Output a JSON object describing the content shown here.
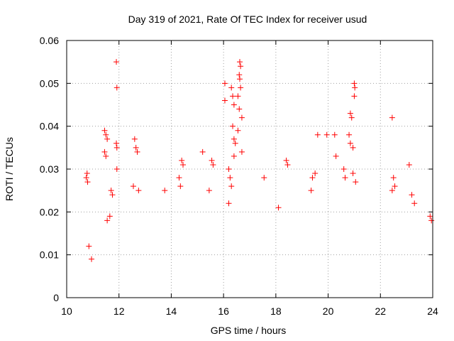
{
  "chart_data": {
    "type": "scatter",
    "title": "Day 319 of 2021, Rate Of TEC Index for receiver usud",
    "xlabel": "GPS time / hours",
    "ylabel": "ROTI / TECUs",
    "xlim": [
      10,
      24
    ],
    "ylim": [
      0,
      0.06
    ],
    "x_ticks": [
      "10",
      "12",
      "14",
      "16",
      "18",
      "20",
      "22",
      "24"
    ],
    "y_ticks": [
      "0",
      "0.01",
      "0.02",
      "0.03",
      "0.04",
      "0.05",
      "0.06"
    ],
    "grid": true,
    "marker": "plus",
    "color": "#ff0000",
    "series": [
      {
        "points": [
          [
            10.75,
            0.028
          ],
          [
            10.78,
            0.029
          ],
          [
            10.8,
            0.027
          ],
          [
            10.85,
            0.012
          ],
          [
            10.95,
            0.009
          ],
          [
            11.45,
            0.039
          ],
          [
            11.5,
            0.038
          ],
          [
            11.55,
            0.037
          ],
          [
            11.45,
            0.034
          ],
          [
            11.5,
            0.033
          ],
          [
            11.7,
            0.025
          ],
          [
            11.75,
            0.024
          ],
          [
            11.65,
            0.019
          ],
          [
            11.55,
            0.018
          ],
          [
            11.9,
            0.055
          ],
          [
            11.92,
            0.049
          ],
          [
            11.9,
            0.036
          ],
          [
            11.92,
            0.035
          ],
          [
            11.92,
            0.03
          ],
          [
            12.6,
            0.037
          ],
          [
            12.65,
            0.035
          ],
          [
            12.7,
            0.034
          ],
          [
            12.55,
            0.026
          ],
          [
            12.75,
            0.025
          ],
          [
            13.75,
            0.025
          ],
          [
            14.4,
            0.032
          ],
          [
            14.45,
            0.031
          ],
          [
            14.3,
            0.028
          ],
          [
            14.35,
            0.026
          ],
          [
            15.2,
            0.034
          ],
          [
            15.55,
            0.032
          ],
          [
            15.6,
            0.031
          ],
          [
            15.45,
            0.025
          ],
          [
            16.05,
            0.05
          ],
          [
            16.05,
            0.046
          ],
          [
            16.3,
            0.049
          ],
          [
            16.35,
            0.047
          ],
          [
            16.4,
            0.045
          ],
          [
            16.35,
            0.04
          ],
          [
            16.4,
            0.037
          ],
          [
            16.45,
            0.036
          ],
          [
            16.4,
            0.033
          ],
          [
            16.2,
            0.03
          ],
          [
            16.25,
            0.028
          ],
          [
            16.3,
            0.026
          ],
          [
            16.2,
            0.022
          ],
          [
            16.62,
            0.055
          ],
          [
            16.65,
            0.054
          ],
          [
            16.6,
            0.052
          ],
          [
            16.62,
            0.051
          ],
          [
            16.65,
            0.049
          ],
          [
            16.55,
            0.047
          ],
          [
            16.6,
            0.044
          ],
          [
            16.7,
            0.042
          ],
          [
            16.55,
            0.039
          ],
          [
            16.7,
            0.034
          ],
          [
            17.55,
            0.028
          ],
          [
            18.4,
            0.032
          ],
          [
            18.45,
            0.031
          ],
          [
            18.1,
            0.021
          ],
          [
            19.5,
            0.029
          ],
          [
            19.6,
            0.038
          ],
          [
            19.4,
            0.028
          ],
          [
            19.35,
            0.025
          ],
          [
            19.95,
            0.038
          ],
          [
            20.25,
            0.038
          ],
          [
            20.3,
            0.033
          ],
          [
            20.6,
            0.03
          ],
          [
            20.65,
            0.028
          ],
          [
            20.85,
            0.043
          ],
          [
            20.9,
            0.042
          ],
          [
            20.8,
            0.038
          ],
          [
            20.85,
            0.036
          ],
          [
            20.95,
            0.035
          ],
          [
            21.0,
            0.05
          ],
          [
            21.02,
            0.049
          ],
          [
            21.0,
            0.047
          ],
          [
            20.95,
            0.029
          ],
          [
            21.05,
            0.027
          ],
          [
            22.45,
            0.042
          ],
          [
            22.5,
            0.028
          ],
          [
            22.55,
            0.026
          ],
          [
            22.45,
            0.025
          ],
          [
            23.1,
            0.031
          ],
          [
            23.2,
            0.024
          ],
          [
            23.3,
            0.022
          ],
          [
            23.9,
            0.019
          ],
          [
            23.95,
            0.018
          ]
        ]
      }
    ]
  }
}
